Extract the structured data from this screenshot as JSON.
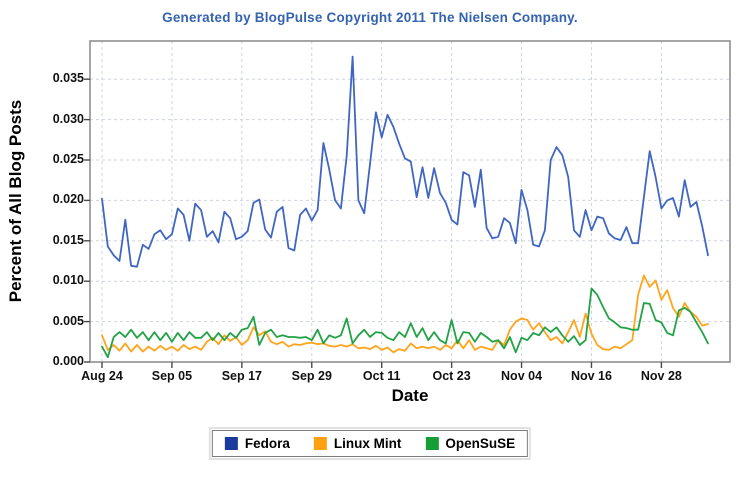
{
  "header": {
    "title": "Generated by BlogPulse Copyright 2011 The Nielsen Company."
  },
  "chart_data": {
    "type": "line",
    "title": "Generated by BlogPulse Copyright 2011 The Nielsen Company.",
    "xlabel": "Date",
    "ylabel": "Percent of All Blog Posts",
    "grid": true,
    "legend_position": "bottom",
    "ylim": [
      0,
      0.0397
    ],
    "y_ticks": [
      0.0,
      0.005,
      0.01,
      0.015,
      0.02,
      0.025,
      0.03,
      0.035
    ],
    "y_tick_labels": [
      "0.000",
      "0.005",
      "0.010",
      "0.015",
      "0.020",
      "0.025",
      "0.030",
      "0.035"
    ],
    "x_tick_labels": [
      "Aug 24",
      "Sep 05",
      "Sep 17",
      "Sep 29",
      "Oct 11",
      "Oct 23",
      "Nov 04",
      "Nov 16",
      "Nov 28"
    ],
    "x_tick_days": [
      0,
      12,
      24,
      36,
      48,
      60,
      72,
      84,
      96
    ],
    "x_unit": "days since Aug 24, one point per day",
    "colors": {
      "title": "#3563af",
      "grid": "#ced3de",
      "border": "#909090",
      "tick": "#4a4a4a",
      "text": "#111111"
    },
    "series": [
      {
        "name": "Fedora",
        "color": "#4066c2",
        "swatch": "#1a3a9e",
        "values": [
          0.0202,
          0.0143,
          0.0132,
          0.0125,
          0.0176,
          0.0119,
          0.0118,
          0.0145,
          0.014,
          0.0158,
          0.0163,
          0.0152,
          0.0158,
          0.019,
          0.0182,
          0.015,
          0.0196,
          0.0188,
          0.0155,
          0.0162,
          0.0148,
          0.0186,
          0.0178,
          0.0152,
          0.0155,
          0.0162,
          0.0197,
          0.0201,
          0.0164,
          0.0154,
          0.0186,
          0.0192,
          0.0141,
          0.0138,
          0.0182,
          0.019,
          0.0175,
          0.0188,
          0.0271,
          0.0238,
          0.02,
          0.019,
          0.0255,
          0.0378,
          0.02,
          0.0184,
          0.0245,
          0.0309,
          0.0278,
          0.0306,
          0.0291,
          0.027,
          0.0252,
          0.0248,
          0.0204,
          0.0241,
          0.0203,
          0.024,
          0.0209,
          0.0197,
          0.0176,
          0.017,
          0.0235,
          0.0231,
          0.0192,
          0.0238,
          0.0166,
          0.0153,
          0.0155,
          0.0178,
          0.0172,
          0.0147,
          0.0213,
          0.0188,
          0.0145,
          0.0143,
          0.0163,
          0.025,
          0.0266,
          0.0256,
          0.0229,
          0.0163,
          0.0155,
          0.0188,
          0.0163,
          0.018,
          0.0178,
          0.0159,
          0.0153,
          0.0151,
          0.0167,
          0.0147,
          0.0147,
          0.0204,
          0.0261,
          0.0229,
          0.019,
          0.02,
          0.0203,
          0.018,
          0.0225,
          0.0192,
          0.0198,
          0.0168,
          0.0132
        ]
      },
      {
        "name": "Linux Mint",
        "color": "#ffa41b",
        "swatch": "#ffa00f",
        "values": [
          0.0033,
          0.0015,
          0.0021,
          0.0014,
          0.0023,
          0.0013,
          0.0021,
          0.0013,
          0.0019,
          0.0014,
          0.002,
          0.0015,
          0.0019,
          0.0014,
          0.0021,
          0.0016,
          0.0019,
          0.0015,
          0.0025,
          0.003,
          0.0022,
          0.0033,
          0.0026,
          0.0031,
          0.0021,
          0.0027,
          0.0043,
          0.0033,
          0.0038,
          0.0025,
          0.0022,
          0.0025,
          0.0019,
          0.0022,
          0.0021,
          0.0023,
          0.0024,
          0.0022,
          0.0023,
          0.002,
          0.0019,
          0.0021,
          0.0019,
          0.0022,
          0.0017,
          0.0018,
          0.0016,
          0.002,
          0.0015,
          0.0018,
          0.0012,
          0.0016,
          0.0014,
          0.0023,
          0.0017,
          0.0019,
          0.0017,
          0.0019,
          0.0015,
          0.0021,
          0.0017,
          0.0027,
          0.0017,
          0.0027,
          0.0015,
          0.0019,
          0.0017,
          0.0015,
          0.0027,
          0.0021,
          0.004,
          0.005,
          0.0054,
          0.0052,
          0.004,
          0.0048,
          0.0037,
          0.0027,
          0.0031,
          0.0023,
          0.0037,
          0.0052,
          0.0031,
          0.006,
          0.0035,
          0.0021,
          0.0016,
          0.0015,
          0.0019,
          0.0017,
          0.0022,
          0.0027,
          0.0083,
          0.0107,
          0.0093,
          0.0101,
          0.0077,
          0.0089,
          0.0067,
          0.0056,
          0.0073,
          0.0062,
          0.0056,
          0.0045,
          0.0047
        ]
      },
      {
        "name": "OpenSuSE",
        "color": "#22a246",
        "swatch": "#159e36",
        "values": [
          0.0019,
          0.0006,
          0.0031,
          0.0037,
          0.0031,
          0.004,
          0.003,
          0.0037,
          0.0027,
          0.0037,
          0.0027,
          0.0036,
          0.0025,
          0.0036,
          0.0027,
          0.0037,
          0.003,
          0.003,
          0.0037,
          0.0027,
          0.0036,
          0.0027,
          0.0036,
          0.003,
          0.004,
          0.0042,
          0.0056,
          0.0021,
          0.0036,
          0.004,
          0.0031,
          0.0033,
          0.0031,
          0.0031,
          0.003,
          0.0031,
          0.0027,
          0.004,
          0.0023,
          0.0033,
          0.003,
          0.0033,
          0.0054,
          0.0023,
          0.0033,
          0.004,
          0.0031,
          0.0037,
          0.0036,
          0.003,
          0.0027,
          0.0037,
          0.0031,
          0.0048,
          0.0031,
          0.0042,
          0.0027,
          0.0037,
          0.0027,
          0.0023,
          0.0052,
          0.0023,
          0.0037,
          0.0036,
          0.0025,
          0.0036,
          0.0031,
          0.0025,
          0.0027,
          0.0017,
          0.0031,
          0.0012,
          0.003,
          0.0027,
          0.0036,
          0.0033,
          0.0043,
          0.0037,
          0.0043,
          0.0033,
          0.0025,
          0.0032,
          0.0021,
          0.0027,
          0.0091,
          0.0083,
          0.0068,
          0.0054,
          0.0049,
          0.0043,
          0.0042,
          0.004,
          0.004,
          0.0073,
          0.0072,
          0.0052,
          0.0049,
          0.0036,
          0.0033,
          0.0064,
          0.0067,
          0.0062,
          0.0049,
          0.0037,
          0.0023
        ]
      }
    ]
  }
}
